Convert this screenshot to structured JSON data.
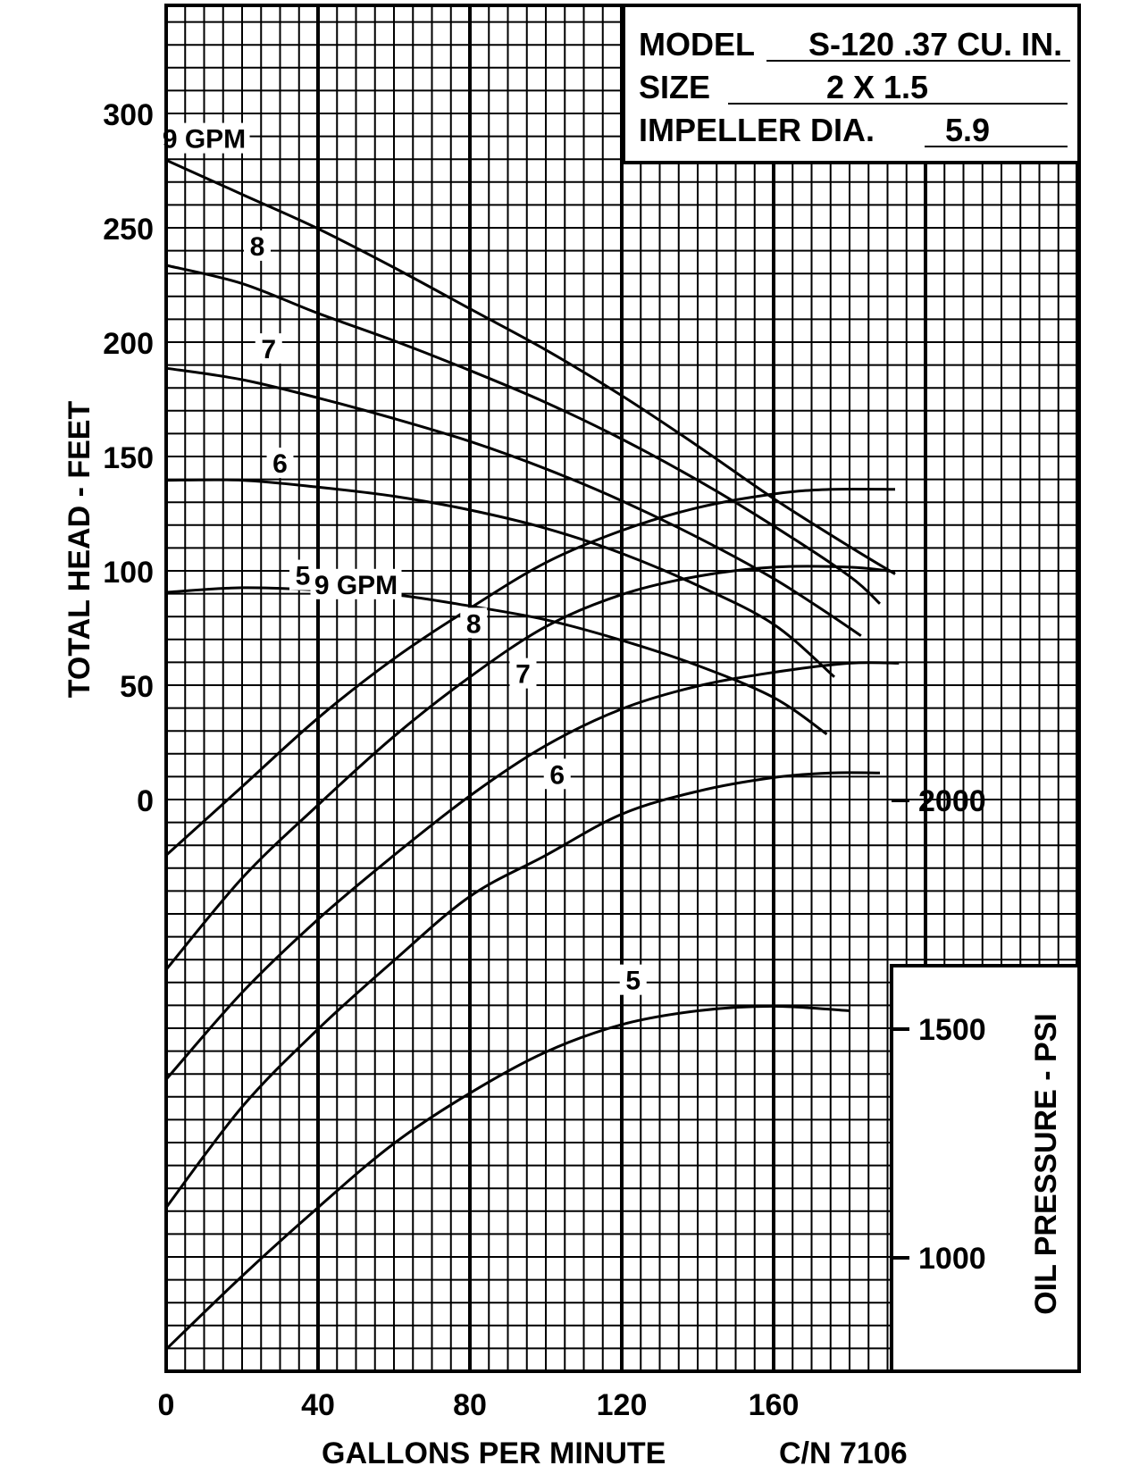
{
  "chart_data": [
    {
      "type": "line",
      "ylabel": "TOTAL HEAD - FEET",
      "xlabel": "GALLONS PER MINUTE",
      "xlim": [
        0,
        240
      ],
      "ylim": [
        0,
        350
      ],
      "x_ticks": [
        "0",
        "40",
        "80",
        "120",
        "160"
      ],
      "y_ticks": [
        "0",
        "50",
        "100",
        "150",
        "200",
        "250",
        "300"
      ],
      "grid": true,
      "series": [
        {
          "name": "9 GPM",
          "points": [
            [
              0,
              280
            ],
            [
              20,
              265
            ],
            [
              40,
              250
            ],
            [
              60,
              233
            ],
            [
              80,
              215
            ],
            [
              100,
              197
            ],
            [
              120,
              177
            ],
            [
              140,
              155
            ],
            [
              160,
              132
            ],
            [
              180,
              111
            ],
            [
              192,
              99
            ]
          ]
        },
        {
          "name": "8",
          "points": [
            [
              0,
              234
            ],
            [
              20,
              226
            ],
            [
              40,
              213
            ],
            [
              60,
              201
            ],
            [
              80,
              188
            ],
            [
              100,
              174
            ],
            [
              120,
              158
            ],
            [
              140,
              140
            ],
            [
              160,
              120
            ],
            [
              180,
              98
            ],
            [
              188,
              86
            ]
          ]
        },
        {
          "name": "7",
          "points": [
            [
              0,
              189
            ],
            [
              20,
              184
            ],
            [
              40,
              176
            ],
            [
              60,
              167
            ],
            [
              80,
              157
            ],
            [
              100,
              145
            ],
            [
              120,
              131
            ],
            [
              140,
              115
            ],
            [
              160,
              97
            ],
            [
              175,
              81
            ],
            [
              183,
              72
            ]
          ]
        },
        {
          "name": "6",
          "points": [
            [
              0,
              140
            ],
            [
              20,
              140
            ],
            [
              40,
              137
            ],
            [
              60,
              133
            ],
            [
              80,
              127
            ],
            [
              100,
              119
            ],
            [
              120,
              108
            ],
            [
              140,
              94
            ],
            [
              160,
              77
            ],
            [
              176,
              54
            ]
          ]
        },
        {
          "name": "5",
          "points": [
            [
              0,
              91
            ],
            [
              20,
              93
            ],
            [
              40,
              92
            ],
            [
              60,
              90
            ],
            [
              80,
              85
            ],
            [
              100,
              79
            ],
            [
              120,
              70
            ],
            [
              140,
              59
            ],
            [
              160,
              45
            ],
            [
              174,
              29
            ]
          ]
        }
      ]
    },
    {
      "type": "line",
      "ylabel": "OIL PRESSURE - PSI",
      "xlabel": "GALLONS PER MINUTE",
      "xlim": [
        0,
        240
      ],
      "ylim": [
        600,
        2950
      ],
      "y_ticks": [
        "1000",
        "1500",
        "2000"
      ],
      "grid": true,
      "series": [
        {
          "name": "9 GPM",
          "points": [
            [
              0,
              1880
            ],
            [
              20,
              2030
            ],
            [
              40,
              2180
            ],
            [
              60,
              2310
            ],
            [
              80,
              2420
            ],
            [
              100,
              2520
            ],
            [
              120,
              2590
            ],
            [
              140,
              2640
            ],
            [
              160,
              2670
            ],
            [
              175,
              2680
            ],
            [
              192,
              2680
            ]
          ]
        },
        {
          "name": "8",
          "points": [
            [
              0,
              1630
            ],
            [
              20,
              1830
            ],
            [
              40,
              1990
            ],
            [
              60,
              2140
            ],
            [
              80,
              2270
            ],
            [
              100,
              2380
            ],
            [
              120,
              2450
            ],
            [
              140,
              2490
            ],
            [
              160,
              2510
            ],
            [
              180,
              2510
            ],
            [
              192,
              2500
            ]
          ]
        },
        {
          "name": "7",
          "points": [
            [
              0,
              1390
            ],
            [
              20,
              1580
            ],
            [
              40,
              1740
            ],
            [
              60,
              1880
            ],
            [
              80,
              2010
            ],
            [
              100,
              2120
            ],
            [
              120,
              2200
            ],
            [
              140,
              2250
            ],
            [
              160,
              2280
            ],
            [
              180,
              2300
            ],
            [
              193,
              2300
            ]
          ]
        },
        {
          "name": "6",
          "points": [
            [
              0,
              1110
            ],
            [
              20,
              1330
            ],
            [
              40,
              1500
            ],
            [
              60,
              1650
            ],
            [
              80,
              1790
            ],
            [
              100,
              1880
            ],
            [
              120,
              1970
            ],
            [
              140,
              2020
            ],
            [
              160,
              2050
            ],
            [
              175,
              2060
            ],
            [
              188,
              2060
            ]
          ]
        },
        {
          "name": "5",
          "points": [
            [
              0,
              800
            ],
            [
              20,
              960
            ],
            [
              40,
              1110
            ],
            [
              60,
              1250
            ],
            [
              80,
              1360
            ],
            [
              100,
              1450
            ],
            [
              120,
              1510
            ],
            [
              140,
              1540
            ],
            [
              160,
              1550
            ],
            [
              180,
              1540
            ]
          ]
        }
      ]
    }
  ],
  "info_box": {
    "model_label": "MODEL",
    "model_value": "S-120  .37 CU. IN.",
    "size_label": "SIZE",
    "size_value": "2 X 1.5",
    "impeller_label": "IMPELLER DIA.",
    "impeller_value": "5.9"
  },
  "footer": {
    "xlabel": "GALLONS PER MINUTE",
    "code": "C/N 7106"
  }
}
